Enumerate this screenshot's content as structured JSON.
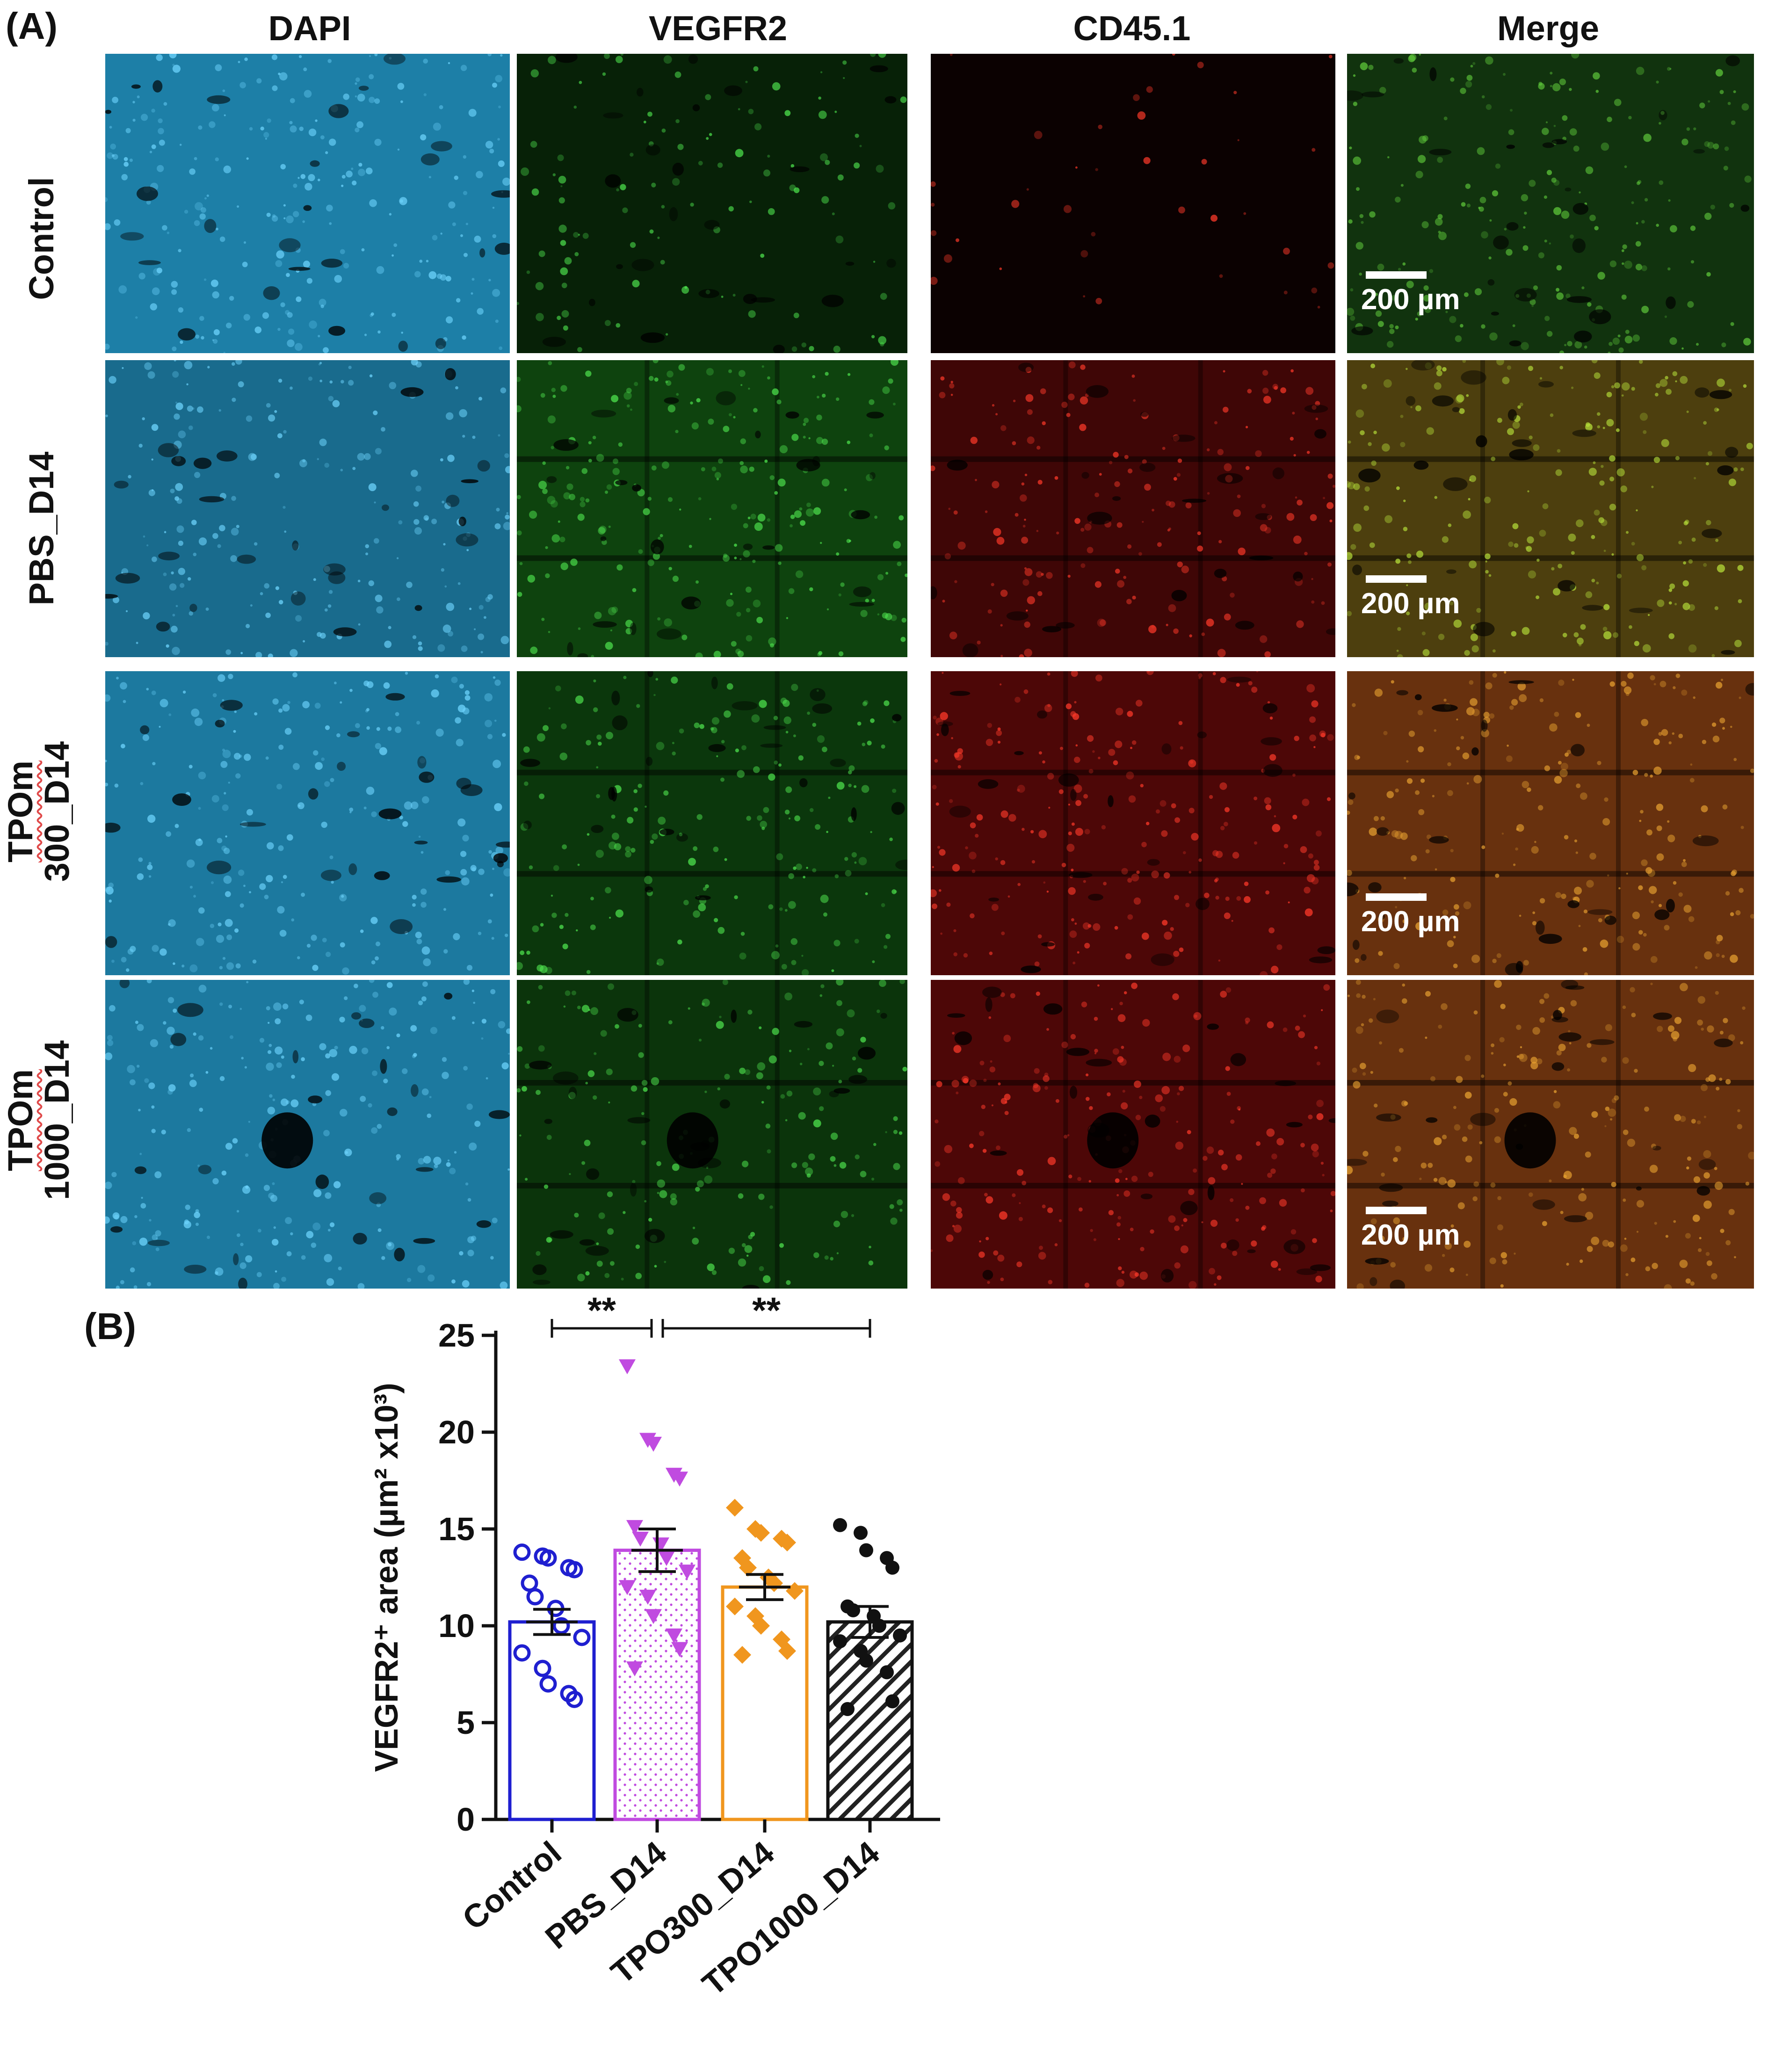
{
  "panel_a_label": "(A)",
  "panel_b_label": "(B)",
  "columns": [
    {
      "label": "DAPI",
      "color": "#32b9e6"
    },
    {
      "label": "VEGFR2",
      "color": "#28c828"
    },
    {
      "label": "CD45.1",
      "color": "#e61e1e"
    },
    {
      "label": "Merge",
      "color": "#a0c820"
    }
  ],
  "rows": [
    {
      "label": "Control",
      "label_lines": [
        "Control"
      ],
      "wavy": false,
      "levels": {
        "dapi": 0.95,
        "vegfr2": 0.45,
        "cd451": 0.08,
        "merge": "green"
      }
    },
    {
      "label": "PBS_D14",
      "label_lines": [
        "PBS_D14"
      ],
      "wavy": false,
      "levels": {
        "dapi": 0.8,
        "vegfr2": 0.9,
        "cd451": 0.7,
        "merge": "yellow-green"
      }
    },
    {
      "label": "TPOm 300_D14",
      "label_lines": [
        "TPOm",
        "300_D14"
      ],
      "wavy": true,
      "levels": {
        "dapi": 0.9,
        "vegfr2": 0.75,
        "cd451": 0.85,
        "merge": "orange"
      }
    },
    {
      "label": "TPOm 1000_D14",
      "label_lines": [
        "TPOm",
        "1000_D14"
      ],
      "wavy": true,
      "levels": {
        "dapi": 0.9,
        "vegfr2": 0.7,
        "cd451": 0.85,
        "merge": "orange"
      }
    }
  ],
  "scale_bar_label": "200 µm",
  "chart_data": {
    "type": "bar",
    "categories": [
      "Control",
      "PBS_D14",
      "TPO300_D14",
      "TPO1000_D14"
    ],
    "values": [
      10.2,
      13.9,
      12.0,
      10.2
    ],
    "sem": [
      0.65,
      1.1,
      0.65,
      0.8
    ],
    "ylabel": "VEGFR2⁺ area (µm² x10³)",
    "ylim": [
      0,
      25
    ],
    "yticks": [
      0,
      5,
      10,
      15,
      20,
      25
    ],
    "colors": [
      "#1f1fd0",
      "#c04be0",
      "#f0961e",
      "#111111"
    ],
    "fill_patterns": [
      "none",
      "dots",
      "none",
      "hatch"
    ],
    "markers": [
      "circle-open",
      "triangle-down",
      "diamond",
      "circle-filled"
    ],
    "points": [
      [
        13.8,
        13.6,
        13.5,
        13.0,
        12.9,
        12.2,
        11.5,
        10.9,
        10.0,
        9.4,
        8.6,
        7.8,
        7.0,
        6.5,
        6.2
      ],
      [
        23.4,
        19.6,
        19.4,
        17.8,
        17.6,
        15.1,
        14.5,
        14.2,
        13.5,
        12.8,
        12.0,
        11.5,
        10.5,
        9.5,
        8.8,
        7.8
      ],
      [
        16.1,
        15.0,
        14.8,
        14.5,
        14.3,
        13.5,
        13.0,
        12.5,
        12.2,
        11.8,
        11.0,
        10.5,
        10.0,
        9.3,
        8.7,
        8.5
      ],
      [
        15.2,
        14.8,
        13.9,
        13.5,
        13.0,
        11.0,
        10.8,
        10.5,
        10.0,
        9.5,
        9.2,
        8.7,
        8.2,
        7.6,
        6.1,
        5.7
      ]
    ],
    "significance": [
      {
        "from": 0,
        "to": 1,
        "label": "**"
      },
      {
        "from": 1,
        "to": 3,
        "label": "**"
      }
    ]
  }
}
